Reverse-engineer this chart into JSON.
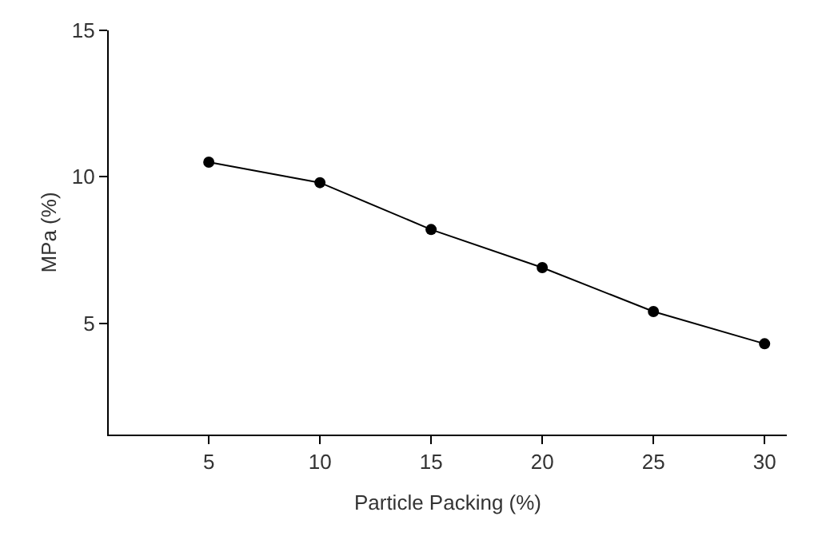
{
  "chart_data": {
    "type": "line",
    "xlabel": "Particle Packing (%)",
    "ylabel": "MPa (%)",
    "x": [
      5,
      10,
      15,
      20,
      25,
      30
    ],
    "series": [
      {
        "color": "#000000",
        "values": [
          10.5,
          9.8,
          8.2,
          6.9,
          5.4,
          4.3
        ]
      }
    ],
    "xlim": [
      0.5,
      31
    ],
    "ylim": [
      1.2,
      15
    ],
    "xticks": [
      5,
      10,
      15,
      20,
      25,
      30
    ],
    "yticks": [
      5,
      10,
      15
    ],
    "marker": "circle",
    "line_style": "solid"
  }
}
